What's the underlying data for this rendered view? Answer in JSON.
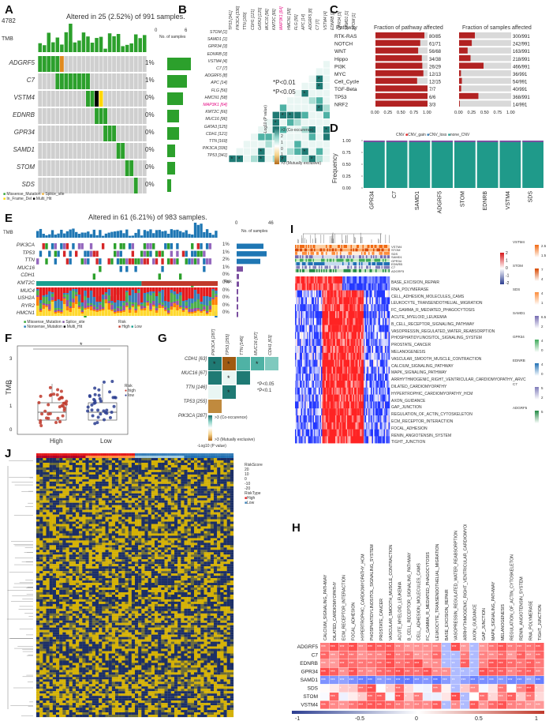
{
  "panels": {
    "A": {
      "label": "A",
      "caption": "Altered in 25 (2.52%) of 991 samples.",
      "tmb_label": "TMB",
      "tmb_max": "4782",
      "genes": [
        "ADGRF5",
        "C7",
        "VSTM4",
        "EDNRB",
        "GPR34",
        "SAMD1",
        "STOM",
        "SDS"
      ],
      "pcts": [
        "1%",
        "1%",
        "0%",
        "0%",
        "0%",
        "0%",
        "0%",
        "0%"
      ],
      "nsamples_label": "No. of samples",
      "axis0": "0",
      "axis6": "6",
      "legend": [
        "Missense_Mutation",
        "Splice_site",
        "In_Frame_Del",
        "Multi_Hit"
      ]
    },
    "B": {
      "label": "B",
      "genes": [
        "STOM [1]",
        "SAMD1 [1]",
        "GPR34 [3]",
        "EDNRB [3]",
        "VSTM4 [4]",
        "C7 [7]",
        "ADGRF5 [8]",
        "APC [14]",
        "FLG [56]",
        "HMCN1 [58]",
        "MAP3K1 [64]",
        "KMT2C [66]",
        "MUC16 [96]",
        "GATA3 [125]",
        "CDH1 [121]",
        "TTN [169]",
        "PIK3CA [336]",
        "TP53 [341]"
      ],
      "highlight": "MAP3K1 [64]",
      "sig1": "*P<0.01",
      "sig2": "*P<0.05",
      "legend_title": "-Log10 (P value)",
      "legend_top": ">3 (Co-occurence)",
      "legend_bottom": ">3 (Mutually exclusive)",
      "ticks": [
        "2",
        "1",
        "0",
        "1",
        "2"
      ]
    },
    "C": {
      "label": "C",
      "col1": "Pathway",
      "col2": "Fraction of pathway affected",
      "col3": "Fraction of samples affected",
      "rows": [
        {
          "name": "RTK-RAS",
          "frac": "80/85",
          "samp": "300/991",
          "f": 0.94,
          "s": 0.303
        },
        {
          "name": "NOTCH",
          "frac": "61/71",
          "samp": "242/991",
          "f": 0.86,
          "s": 0.244
        },
        {
          "name": "WNT",
          "frac": "56/68",
          "samp": "163/991",
          "f": 0.82,
          "s": 0.164
        },
        {
          "name": "Hippo",
          "frac": "34/38",
          "samp": "218/991",
          "f": 0.89,
          "s": 0.22
        },
        {
          "name": "PI3K",
          "frac": "26/29",
          "samp": "466/991",
          "f": 0.9,
          "s": 0.47
        },
        {
          "name": "MYC",
          "frac": "12/13",
          "samp": "36/991",
          "f": 0.92,
          "s": 0.036
        },
        {
          "name": "Cell_Cycle",
          "frac": "12/15",
          "samp": "54/991",
          "f": 0.8,
          "s": 0.054
        },
        {
          "name": "TGF-Beta",
          "frac": "7/7",
          "samp": "40/991",
          "f": 1.0,
          "s": 0.04
        },
        {
          "name": "TP53",
          "frac": "6/6",
          "samp": "368/991",
          "f": 1.0,
          "s": 0.371
        },
        {
          "name": "NRF2",
          "frac": "3/3",
          "samp": "14/991",
          "f": 1.0,
          "s": 0.014
        }
      ],
      "ticks": [
        "0.00",
        "0.25",
        "0.50",
        "0.75",
        "1.00"
      ]
    },
    "D": {
      "label": "D",
      "legend": [
        "CNV",
        "CNV_gain",
        "CNV_loss",
        "none_CNV"
      ],
      "ylabel": "Frequency",
      "yticks": [
        "0.00",
        "0.25",
        "0.50",
        "0.75",
        "1.00"
      ],
      "genes": [
        "GPR34",
        "C7",
        "SAMD1",
        "ADGRF5",
        "STOM",
        "EDNRB",
        "VSTM4",
        "SDS"
      ]
    },
    "E": {
      "label": "E",
      "caption": "Altered in 61 (6.21%) of 983 samples.",
      "tmb_label": "TMB",
      "genes": [
        "PIK3CA",
        "TP53",
        "TTN",
        "MUC16",
        "CDH1",
        "KMT2C",
        "MUC4",
        "USH2A",
        "RYR2",
        "HMCN1"
      ],
      "pcts": [
        "1%",
        "1%",
        "2%",
        "1%",
        "0%",
        "0%",
        "0%",
        "0%",
        "0%",
        "0%"
      ],
      "nsamples_label": "No. of samples",
      "axis0": "0",
      "axis46": "46",
      "risk": "Risk",
      "legend": [
        "Missense_Mutation",
        "Splice_site",
        "Nonsense_Mutation",
        "Multi_Hit"
      ],
      "risk_legend": [
        "Risk",
        "High",
        "Low"
      ]
    },
    "F": {
      "label": "F",
      "ylabel": "TMB",
      "xcats": [
        "High",
        "Low"
      ],
      "star": "*",
      "legend_title": "Risk",
      "legend": [
        "high",
        "low"
      ],
      "yticks": [
        "0",
        "1",
        "2",
        "3"
      ]
    },
    "G": {
      "label": "G",
      "genes_left": [
        "CDH1 [63]",
        "MUC16 [67]",
        "TTN [146]",
        "TP53 [255]",
        "PIK3CA [287]"
      ],
      "genes_top": [
        "PIK3CA [287]",
        "TP53 [255]",
        "TTN [146]",
        "MUC16 [67]",
        "CDH1 [63]"
      ],
      "sig1": "*P<0.05",
      "sig2": "*P<0.1",
      "legend_title": "-Log10 (P value)",
      "legend_top": ">3 (Co-occurence)",
      "legend_bottom": ">3 (Mutually exclusive)"
    },
    "H": {
      "label": "H",
      "cols": [
        "CALCIUM_SIGNALING_PATHWAY",
        "DILATED_CARDIOMYOPATHY",
        "ECM_RECEPTOR_INTERACTION",
        "FOCAL_ADHESION",
        "HYPERTROPHIC_CARDIOMYOPATHY_HCM",
        "PHOSPHATIDYLINOSITOL_SIGNALING_SYSTEM",
        "PROSTATE_CANCER",
        "VASCULAR_SMOOTH_MUSCLE_CONTRACTION",
        "ACUTE_MYELOID_LEUKEMIA",
        "B_CELL_RECEPTOR_SIGNALING_PATHWAY",
        "CELL_ADHESION_MOLECULES_CAMS",
        "FC_GAMMA_R_MEDIATED_PHAGOCYTOSIS",
        "LEUKOCYTE_TRANSENDOTHELIAL_MIGRATION",
        "BASE_EXCISION_REPAIR",
        "VASOPRESSIN_REGULATED_WATER_REABSORPTION",
        "ARRHYTHMOGENIC_RIGHT_VENTRICULAR_CARDIOMYOPATHY_ARVC",
        "AXON_GUIDANCE",
        "GAP_JUNCTION",
        "MAPK_SIGNALING_PATHWAY",
        "MELANOGENESIS",
        "REGULATION_OF_ACTIN_CYTOSKELETON",
        "RENIN_ANGIOTENSIN_SYSTEM",
        "RNA_POLYMERASE",
        "TIGHT_JUNCTION"
      ],
      "rows": [
        "ADGRF5",
        "C7",
        "EDNRB",
        "GPR34",
        "SAMD1",
        "SDS",
        "STOM",
        "VSTM4"
      ],
      "xticks": [
        "-1",
        "-0.5",
        "0",
        "0.5",
        "1"
      ]
    },
    "I": {
      "label": "I",
      "annot": [
        "VSTM4",
        "STOM",
        "SDS",
        "SAMD1",
        "GPR34",
        "EDNRB",
        "C7",
        "ADGRF5"
      ],
      "pathways": [
        "BASE_EXCISION_REPAIR",
        "RNA_POLYMERASE",
        "CELL_ADHESION_MOLECULES_CAMS",
        "LEUKOCYTE_TRANSENDOTHELIAL_MIGRATION",
        "FC_GAMMA_R_MEDIATED_PHAGOCYTOSIS",
        "ACUTE_MYELOID_LEUKEMIA",
        "B_CELL_RECEPTOR_SIGNALING_PATHWAY",
        "VASOPRESSIN_REGULATED_WATER_REABSORPTION",
        "PHOSPHATIDYLINOSITOL_SIGNALING_SYSTEM",
        "PROSTATE_CANCER",
        "MELANOGENESIS",
        "VASCULAR_SMOOTH_MUSCLE_CONTRACTION",
        "CALCIUM_SIGNALING_PATHWAY",
        "MAPK_SIGNALING_PATHWAY",
        "ARRHYTHMOGENIC_RIGHT_VENTRICULAR_CARDIOMYOPATHY_ARVC",
        "DILATED_CARDIOMYOPATHY",
        "HYPERTROPHIC_CARDIOMYOPATHY_HCM",
        "AXON_GUIDANCE",
        "GAP_JUNCTION",
        "REGULATION_OF_ACTIN_CYTOSKELETON",
        "ECM_RECEPTOR_INTERACTION",
        "FOCAL_ADHESION",
        "RENIN_ANGIOTENSIN_SYSTEM",
        "TIGHT_JUNCTION"
      ],
      "scale": [
        "2",
        "1",
        "0",
        "-1",
        "-2"
      ],
      "legend": [
        {
          "n": "VSTM4",
          "a": "2.5",
          "b": "1.5"
        },
        {
          "n": "STOM",
          "a": "7",
          "b": "4"
        },
        {
          "n": "SDS",
          "a": "4",
          "b": "1"
        },
        {
          "n": "SAMD1",
          "a": "6.5",
          "b": "2"
        },
        {
          "n": "GPR34",
          "a": "4",
          "b": "0"
        },
        {
          "n": "EDNRB",
          "a": "4",
          "b": "0"
        },
        {
          "n": "C7",
          "a": "5",
          "b": "2"
        },
        {
          "n": "ADGRF5",
          "a": "5",
          "b": ""
        }
      ]
    },
    "J": {
      "label": "J",
      "legend_title": "RiskScore",
      "legend_scale": [
        "20",
        "10",
        "0",
        "-10",
        "-20"
      ],
      "risk_title": "RiskType",
      "risk_items": [
        "High",
        "Low"
      ]
    }
  }
}
